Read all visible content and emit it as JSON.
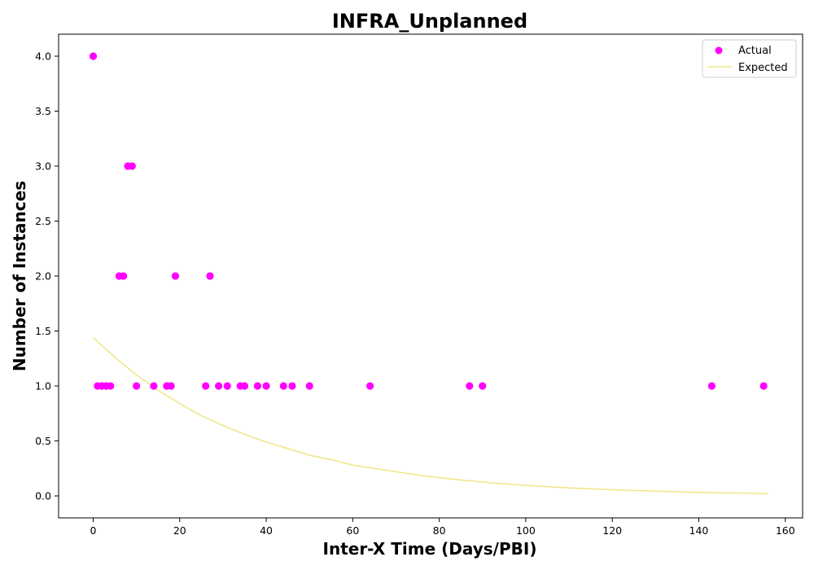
{
  "chart_data": {
    "type": "scatter",
    "title": "INFRA_Unplanned",
    "xlabel": "Inter-X Time (Days/PBI)",
    "ylabel": "Number of Instances",
    "xlim": [
      -8,
      164
    ],
    "ylim": [
      -0.2,
      4.2
    ],
    "xticks": [
      0,
      20,
      40,
      60,
      80,
      100,
      120,
      140,
      160
    ],
    "yticks": [
      0.0,
      0.5,
      1.0,
      1.5,
      2.0,
      2.5,
      3.0,
      3.5,
      4.0
    ],
    "xtick_labels": [
      "0",
      "20",
      "40",
      "60",
      "80",
      "100",
      "120",
      "140",
      "160"
    ],
    "ytick_labels": [
      "0.0",
      "0.5",
      "1.0",
      "1.5",
      "2.0",
      "2.5",
      "3.0",
      "3.5",
      "4.0"
    ],
    "grid": false,
    "legend_position": "top-right",
    "series": [
      {
        "name": "Actual",
        "kind": "scatter",
        "color": "#ff00ff",
        "points": [
          [
            0,
            4
          ],
          [
            1,
            1
          ],
          [
            2,
            1
          ],
          [
            3,
            1
          ],
          [
            4,
            1
          ],
          [
            6,
            2
          ],
          [
            7,
            2
          ],
          [
            8,
            3
          ],
          [
            9,
            3
          ],
          [
            10,
            1
          ],
          [
            14,
            1
          ],
          [
            17,
            1
          ],
          [
            18,
            1
          ],
          [
            19,
            2
          ],
          [
            26,
            1
          ],
          [
            27,
            2
          ],
          [
            29,
            1
          ],
          [
            31,
            1
          ],
          [
            34,
            1
          ],
          [
            35,
            1
          ],
          [
            38,
            1
          ],
          [
            40,
            1
          ],
          [
            44,
            1
          ],
          [
            46,
            1
          ],
          [
            50,
            1
          ],
          [
            64,
            1
          ],
          [
            87,
            1
          ],
          [
            90,
            1
          ],
          [
            143,
            1
          ],
          [
            155,
            1
          ]
        ]
      },
      {
        "name": "Expected",
        "kind": "line",
        "color": "#f0e68c",
        "points": [
          [
            0,
            1.44
          ],
          [
            5,
            1.26
          ],
          [
            10,
            1.1
          ],
          [
            15,
            0.96
          ],
          [
            20,
            0.84
          ],
          [
            25,
            0.73
          ],
          [
            30,
            0.64
          ],
          [
            35,
            0.56
          ],
          [
            40,
            0.49
          ],
          [
            45,
            0.43
          ],
          [
            50,
            0.37
          ],
          [
            55,
            0.33
          ],
          [
            60,
            0.28
          ],
          [
            65,
            0.25
          ],
          [
            70,
            0.22
          ],
          [
            75,
            0.19
          ],
          [
            80,
            0.165
          ],
          [
            85,
            0.145
          ],
          [
            90,
            0.126
          ],
          [
            95,
            0.11
          ],
          [
            100,
            0.096
          ],
          [
            105,
            0.084
          ],
          [
            110,
            0.073
          ],
          [
            115,
            0.064
          ],
          [
            120,
            0.056
          ],
          [
            125,
            0.049
          ],
          [
            130,
            0.043
          ],
          [
            135,
            0.037
          ],
          [
            140,
            0.032
          ],
          [
            145,
            0.028
          ],
          [
            150,
            0.025
          ],
          [
            156,
            0.021
          ]
        ]
      }
    ]
  }
}
